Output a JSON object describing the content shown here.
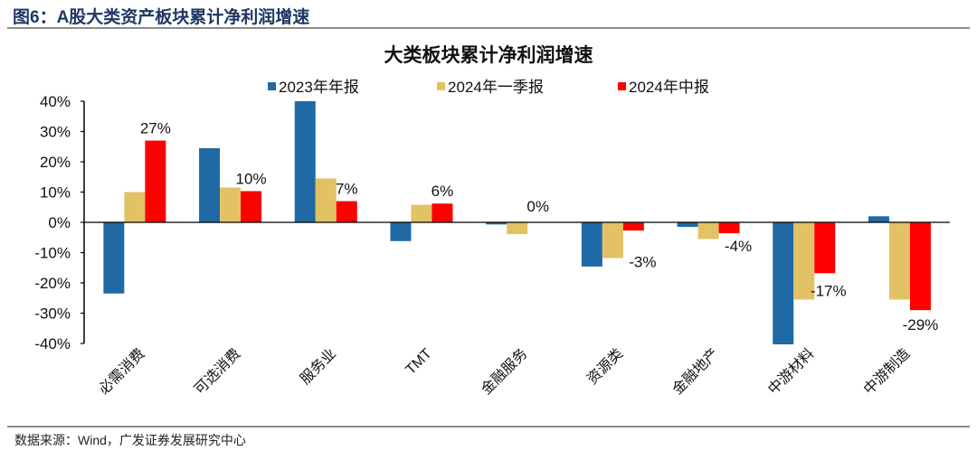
{
  "figure_title": "图6：A股大类资产板块累计净利润增速",
  "source": "数据来源：Wind，广发证券发展研究中心",
  "chart_data": {
    "type": "bar",
    "title": "大类板块累计净利润增速",
    "categories": [
      "必需消费",
      "可选消费",
      "服务业",
      "TMT",
      "金融服务",
      "资源类",
      "金融地产",
      "中游材料",
      "中游制造"
    ],
    "series": [
      {
        "name": "2023年年报",
        "color": "#1f6aa5",
        "values": [
          -23.5,
          24.5,
          40.0,
          -6.2,
          -0.7,
          -14.6,
          -1.5,
          -40.3,
          2.0
        ]
      },
      {
        "name": "2024年一季报",
        "color": "#e2c264",
        "values": [
          10.0,
          11.5,
          14.5,
          5.8,
          -3.9,
          -11.8,
          -5.5,
          -25.5,
          -25.5
        ]
      },
      {
        "name": "2024年中报",
        "color": "#ff0000",
        "values": [
          27,
          10.3,
          7,
          6.2,
          0,
          -2.7,
          -3.6,
          -16.8,
          -29
        ]
      }
    ],
    "data_labels": [
      "27%",
      "10%",
      "7%",
      "6%",
      "0%",
      "-3%",
      "-4%",
      "-17%",
      "-29%"
    ],
    "ylim": [
      -40,
      40
    ],
    "yticks": [
      40,
      30,
      20,
      10,
      0,
      -10,
      -20,
      -30,
      -40
    ],
    "ytick_labels": [
      "40%",
      "30%",
      "20%",
      "10%",
      "0%",
      "-10%",
      "-20%",
      "-30%",
      "-40%"
    ],
    "grid": false,
    "legend": "top"
  }
}
